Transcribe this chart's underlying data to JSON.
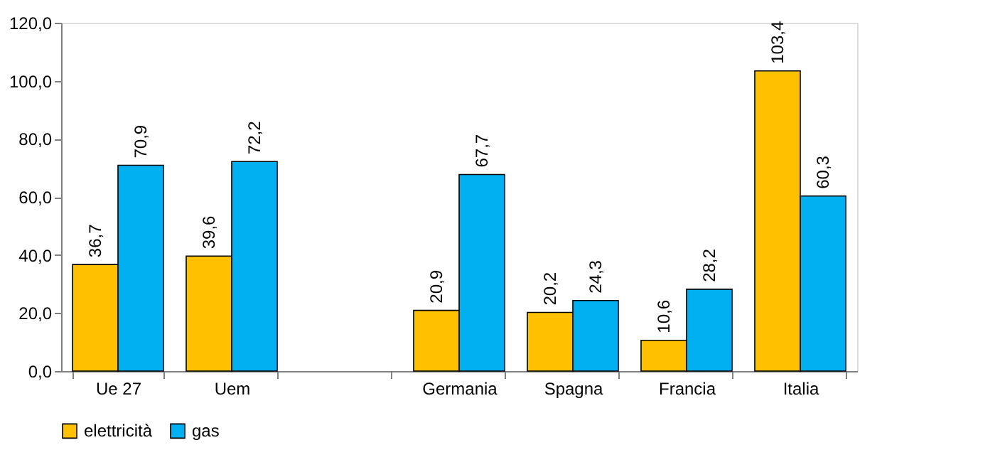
{
  "chart_data": {
    "type": "bar",
    "categories": [
      "Ue 27",
      "Uem",
      null,
      "Germania",
      "Spagna",
      "Francia",
      "Italia"
    ],
    "series": [
      {
        "name": "elettricità",
        "color": "#ffc000",
        "values": [
          36.7,
          39.6,
          null,
          20.9,
          20.2,
          10.6,
          103.4
        ],
        "value_labels": [
          "36,7",
          "39,6",
          null,
          "20,9",
          "20,2",
          "10,6",
          "103,4"
        ]
      },
      {
        "name": "gas",
        "color": "#00b0f0",
        "values": [
          70.9,
          72.2,
          null,
          67.7,
          24.3,
          28.2,
          60.3
        ],
        "value_labels": [
          "70,9",
          "72,2",
          null,
          "67,7",
          "24,3",
          "28,2",
          "60,3"
        ]
      }
    ],
    "ylim": [
      0,
      120
    ],
    "yticks": [
      {
        "value": 0,
        "label": "0,0"
      },
      {
        "value": 20,
        "label": "20,0"
      },
      {
        "value": 40,
        "label": "40,0"
      },
      {
        "value": 60,
        "label": "60,0"
      },
      {
        "value": 80,
        "label": "80,0"
      },
      {
        "value": 100,
        "label": "100,0"
      },
      {
        "value": 120,
        "label": "120,0"
      }
    ],
    "grid": false,
    "legend": "bottom"
  }
}
